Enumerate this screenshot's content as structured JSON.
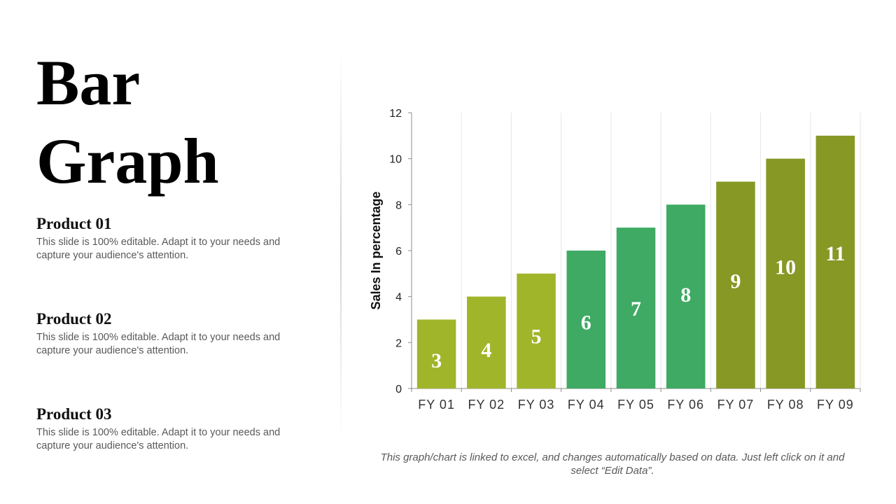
{
  "title": {
    "line1": "Bar",
    "line2": "Graph"
  },
  "products": [
    {
      "heading": "Product 01",
      "text": "This slide is 100% editable. Adapt it to your needs and capture your audience's attention."
    },
    {
      "heading": "Product 02",
      "text": "This slide is 100% editable. Adapt it to your needs and capture your audience's attention."
    },
    {
      "heading": "Product 03",
      "text": "This slide is 100% editable. Adapt it to your needs and capture your audience's attention."
    }
  ],
  "footnote": "This graph/chart is linked to excel, and changes automatically based on data. Just left click on it and select “Edit Data”.",
  "chart_data": {
    "type": "bar",
    "categories": [
      "FY 01",
      "FY 02",
      "FY 03",
      "FY 04",
      "FY 05",
      "FY 06",
      "FY 07",
      "FY 08",
      "FY 09"
    ],
    "values": [
      3,
      4,
      5,
      6,
      7,
      8,
      9,
      10,
      11
    ],
    "data_labels": [
      "3",
      "4",
      "5",
      "6",
      "7",
      "8",
      "9",
      "10",
      "11"
    ],
    "title": "",
    "xlabel": "",
    "ylabel": "Sales In percentage",
    "ylim": [
      0,
      12
    ],
    "yticks": [
      0,
      2,
      4,
      6,
      8,
      10,
      12
    ],
    "grid": "vertical",
    "legend": "none",
    "colors": [
      "#a1b52b",
      "#a1b52b",
      "#a1b52b",
      "#3eaa63",
      "#3eaa63",
      "#3eaa63",
      "#879825",
      "#879825",
      "#879825"
    ]
  }
}
